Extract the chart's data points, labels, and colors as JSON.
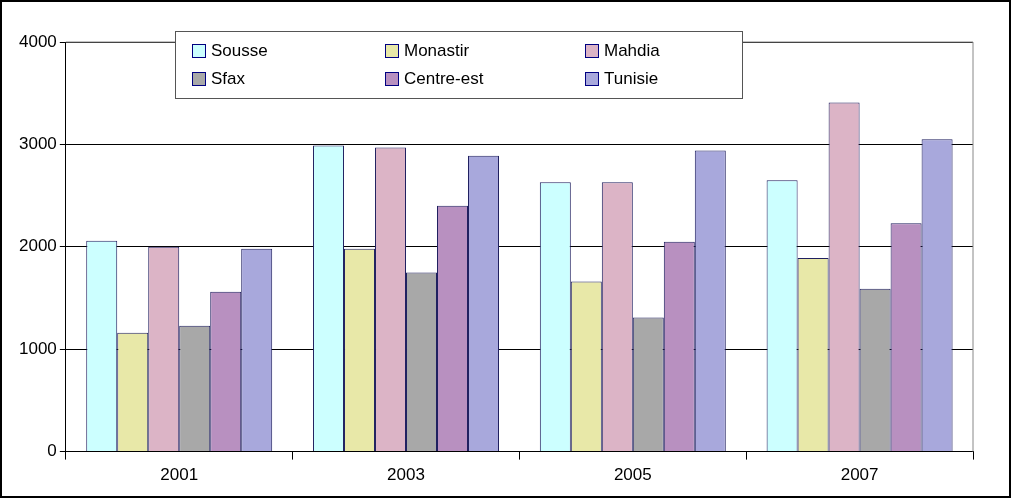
{
  "chart_data": {
    "type": "bar",
    "categories": [
      "2001",
      "2003",
      "2005",
      "2007"
    ],
    "series": [
      {
        "name": "Sousse",
        "color": "#ccffff",
        "values": [
          2060,
          2990,
          2630,
          2650
        ]
      },
      {
        "name": "Monastir",
        "color": "#e8e8a8",
        "values": [
          1160,
          1980,
          1660,
          1890
        ]
      },
      {
        "name": "Mahdia",
        "color": "#dcb4c6",
        "values": [
          2000,
          2970,
          2630,
          3410
        ]
      },
      {
        "name": "Sfax",
        "color": "#a8a8a8",
        "values": [
          1230,
          1750,
          1310,
          1590
        ]
      },
      {
        "name": "Centre-est",
        "color": "#b890c0",
        "values": [
          1560,
          2400,
          2050,
          2230
        ]
      },
      {
        "name": "Tunisie",
        "color": "#a8a8dc",
        "values": [
          1980,
          2890,
          2940,
          3050
        ]
      }
    ],
    "ylim": [
      0,
      4000
    ],
    "yticks": [
      0,
      1000,
      2000,
      3000,
      4000
    ],
    "grid": "y",
    "legend": "top"
  }
}
